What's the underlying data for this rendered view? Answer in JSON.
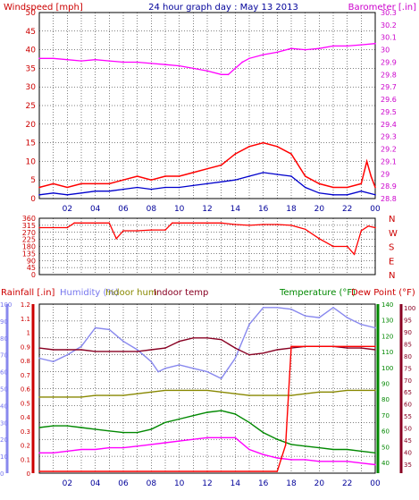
{
  "chart_data": [
    {
      "type": "line",
      "title": "24 hour graph day : May 13 2013",
      "left_axis_label": "Windspeed [mph]",
      "right_axis_label": "Barometer [.in]",
      "x_tick_labels": [
        "02",
        "04",
        "06",
        "08",
        "10",
        "12",
        "14",
        "16",
        "18",
        "20",
        "22",
        "00"
      ],
      "x_range": [
        0,
        24
      ],
      "left_ylim": [
        0,
        50
      ],
      "left_ticks": [
        "0",
        "5",
        "10",
        "15",
        "20",
        "25",
        "30",
        "35",
        "40",
        "45",
        "50"
      ],
      "right_ylim": [
        28.8,
        30.3
      ],
      "right_ticks": [
        "28.8",
        "28.9",
        "29",
        "29.1",
        "29.2",
        "29.3",
        "29.4",
        "29.5",
        "29.6",
        "29.7",
        "29.8",
        "29.9",
        "30",
        "30.1",
        "30.2",
        "30.3"
      ],
      "grid": true,
      "series": [
        {
          "color": "#ff00ff",
          "axis": "right",
          "x": [
            0,
            1,
            2,
            3,
            4,
            5,
            6,
            7,
            8,
            9,
            10,
            11,
            12,
            13,
            13.5,
            14,
            14.5,
            15,
            16,
            17,
            18,
            19,
            20,
            21,
            22,
            23,
            24
          ],
          "y": [
            29.93,
            29.93,
            29.92,
            29.91,
            29.92,
            29.91,
            29.9,
            29.9,
            29.89,
            29.88,
            29.87,
            29.85,
            29.83,
            29.8,
            29.8,
            29.85,
            29.9,
            29.93,
            29.96,
            29.98,
            30.01,
            30.0,
            30.01,
            30.03,
            30.03,
            30.04,
            30.05
          ]
        },
        {
          "color": "#ff0000",
          "axis": "left",
          "x": [
            0,
            1,
            2,
            3,
            4,
            5,
            6,
            7,
            8,
            9,
            10,
            11,
            12,
            13,
            14,
            15,
            16,
            17,
            18,
            19,
            20,
            21,
            22,
            23,
            23.4,
            23.7,
            24
          ],
          "y": [
            3,
            4,
            3,
            4,
            4,
            4,
            5,
            6,
            5,
            6,
            6,
            7,
            8,
            9,
            12,
            14,
            15,
            14,
            12,
            6,
            4,
            3,
            3,
            4,
            10,
            6,
            3
          ]
        },
        {
          "color": "#0000cc",
          "axis": "left",
          "x": [
            0,
            1,
            2,
            3,
            4,
            5,
            6,
            7,
            8,
            9,
            10,
            11,
            12,
            13,
            14,
            15,
            16,
            17,
            18,
            19,
            20,
            21,
            22,
            23,
            24
          ],
          "y": [
            1,
            1.5,
            1,
            1.5,
            2,
            2,
            2.5,
            3,
            2.5,
            3,
            3,
            3.5,
            4,
            4.5,
            5,
            6,
            7,
            6.5,
            6,
            3,
            1.5,
            1,
            1,
            2,
            1
          ]
        }
      ]
    },
    {
      "type": "line",
      "right_letters": [
        "N",
        "W",
        "S",
        "E",
        "N"
      ],
      "left_ticks": [
        "0",
        "45",
        "90",
        "135",
        "180",
        "225",
        "270",
        "315",
        "360"
      ],
      "ylim": [
        0,
        360
      ],
      "x_range": [
        0,
        24
      ],
      "grid": true,
      "series": [
        {
          "color": "#ff0000",
          "x": [
            0,
            2,
            2.5,
            3,
            5,
            5.5,
            6,
            7,
            8,
            9,
            9.5,
            13,
            14,
            15,
            16,
            17,
            18,
            19,
            20,
            21,
            22,
            22.5,
            23,
            23.5,
            24
          ],
          "y": [
            300,
            300,
            330,
            330,
            330,
            230,
            280,
            280,
            285,
            285,
            330,
            330,
            320,
            315,
            320,
            320,
            315,
            290,
            230,
            180,
            180,
            130,
            280,
            310,
            300
          ]
        }
      ]
    },
    {
      "type": "line",
      "legend": [
        "Rainfall [.in]",
        "Humidity (%)",
        "Indoor hum",
        "Indoor temp",
        "Temperature (°F)",
        "Dew Point (°F)"
      ],
      "rain_ticks": [
        "0",
        "0.1",
        "0.2",
        "0.3",
        "0.4",
        "0.5",
        "0.6",
        "0.7",
        "0.8",
        "0.9",
        "1",
        "1.1",
        "1.2"
      ],
      "hum_ticks": [
        "0",
        "10",
        "20",
        "30",
        "40",
        "50",
        "60",
        "70",
        "80",
        "90",
        "100"
      ],
      "temp_ticks": [
        "40",
        "50",
        "60",
        "70",
        "80",
        "90",
        "100",
        "110",
        "120",
        "130",
        "140"
      ],
      "dew_ticks": [
        "35",
        "40",
        "45",
        "50",
        "55",
        "60",
        "65",
        "70",
        "75",
        "80",
        "85",
        "90",
        "95",
        "100"
      ],
      "x_range": [
        0,
        24
      ],
      "grid": true,
      "series": [
        {
          "color": "#8888ee",
          "name": "Humidity (%)",
          "x": [
            0,
            1,
            2,
            3,
            4,
            5,
            6,
            7,
            8,
            8.5,
            9,
            10,
            11,
            12,
            13,
            13.5,
            14,
            15,
            16,
            17,
            18,
            19,
            20,
            21,
            22,
            23,
            24
          ],
          "y": [
            68,
            66,
            70,
            75,
            86,
            85,
            78,
            73,
            66,
            60,
            62,
            64,
            62,
            60,
            56,
            62,
            68,
            88,
            98,
            98,
            97,
            93,
            92,
            98,
            92,
            88,
            86
          ]
        },
        {
          "color": "#880022",
          "name": "Indoor temp",
          "x": [
            0,
            1,
            2,
            3,
            4,
            5,
            6,
            7,
            8,
            9,
            10,
            11,
            12,
            13,
            14,
            15,
            16,
            17,
            18,
            19,
            20,
            21,
            22,
            23,
            24
          ],
          "y": [
            74,
            73,
            73,
            73,
            72,
            72,
            72,
            72,
            73,
            74,
            78,
            80,
            80,
            79,
            74,
            70,
            71,
            73,
            74,
            75,
            75,
            75,
            74,
            74,
            73
          ]
        },
        {
          "color": "#888800",
          "name": "Indoor hum",
          "x": [
            0,
            1,
            2,
            3,
            4,
            5,
            6,
            7,
            8,
            9,
            10,
            11,
            12,
            13,
            14,
            15,
            16,
            17,
            18,
            19,
            20,
            21,
            22,
            23,
            24
          ],
          "y": [
            45,
            45,
            45,
            45,
            46,
            46,
            46,
            47,
            48,
            49,
            49,
            49,
            49,
            48,
            47,
            46,
            46,
            46,
            46,
            47,
            48,
            48,
            49,
            49,
            49
          ]
        },
        {
          "color": "#008800",
          "name": "Temperature (°F)",
          "x": [
            0,
            1,
            2,
            3,
            4,
            5,
            6,
            7,
            8,
            9,
            10,
            11,
            12,
            13,
            14,
            15,
            16,
            17,
            18,
            19,
            20,
            21,
            22,
            23,
            24
          ],
          "y": [
            27,
            28,
            28,
            27,
            26,
            25,
            24,
            24,
            26,
            30,
            32,
            34,
            36,
            37,
            35,
            30,
            24,
            20,
            17,
            16,
            15,
            14,
            14,
            13,
            12
          ]
        },
        {
          "color": "#ff00ff",
          "name": "Dew Point (°F)",
          "x": [
            0,
            1,
            2,
            3,
            4,
            5,
            6,
            7,
            8,
            9,
            10,
            11,
            12,
            13,
            14,
            15,
            16,
            17,
            18,
            19,
            20,
            21,
            22,
            23,
            24
          ],
          "y": [
            12,
            12,
            13,
            14,
            14,
            15,
            15,
            16,
            17,
            18,
            19,
            20,
            21,
            21,
            21,
            14,
            11,
            9,
            8,
            8,
            7,
            7,
            7,
            6,
            5
          ]
        },
        {
          "color": "#ff0000",
          "name": "Rainfall [.in]",
          "x": [
            0,
            12,
            17,
            17.6,
            18,
            24
          ],
          "y": [
            0,
            0,
            0,
            0.2,
            0.9,
            0.9
          ]
        }
      ]
    }
  ]
}
